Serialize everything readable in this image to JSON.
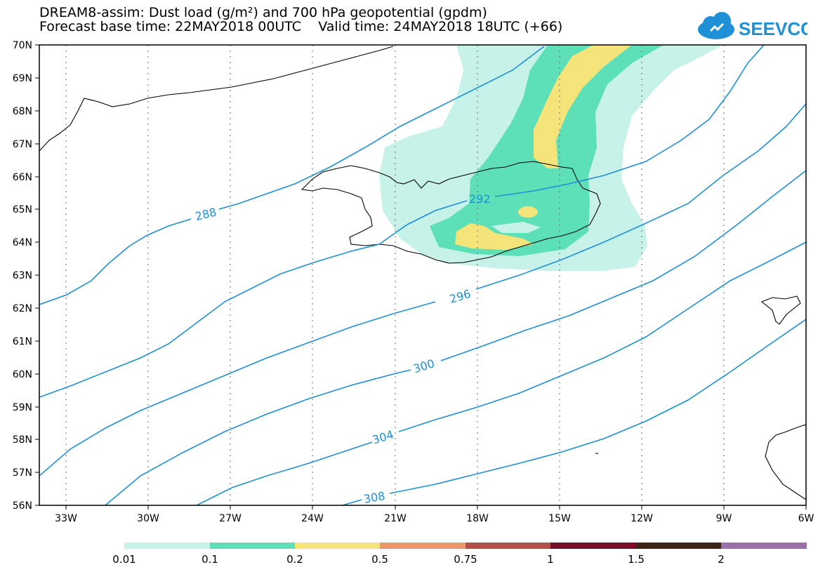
{
  "title": {
    "line1": "DREAM8-assim: Dust load (g/m²) and 700 hPa geopotential (gpdm)",
    "line2": "Forecast base time: 22MAY2018 00UTC    Valid time: 24MAY2018 18UTC (+66)"
  },
  "logo": {
    "text": "SEEVCCC",
    "icon": "cloud-icon",
    "color": "#1f8fd6"
  },
  "map": {
    "lat_labels": [
      "70N",
      "69N",
      "68N",
      "67N",
      "66N",
      "65N",
      "64N",
      "63N",
      "62N",
      "61N",
      "60N",
      "59N",
      "58N",
      "57N",
      "56N"
    ],
    "lon_labels": [
      "33W",
      "30W",
      "27W",
      "24W",
      "21W",
      "18W",
      "15W",
      "12W",
      "9W",
      "6W"
    ],
    "contour_color": "#1f8fd6",
    "contour_labels": [
      "288",
      "292",
      "296",
      "300",
      "304",
      "308"
    ]
  },
  "colorbar": {
    "colors": [
      "#c6f2ea",
      "#5de0b8",
      "#f5e47a",
      "#e89870",
      "#b0504a",
      "#7a0e2a",
      "#3c2418",
      "#9a70a8"
    ],
    "labels": [
      "0.01",
      "0.1",
      "0.2",
      "0.5",
      "0.75",
      "1",
      "1.5",
      "2"
    ]
  }
}
